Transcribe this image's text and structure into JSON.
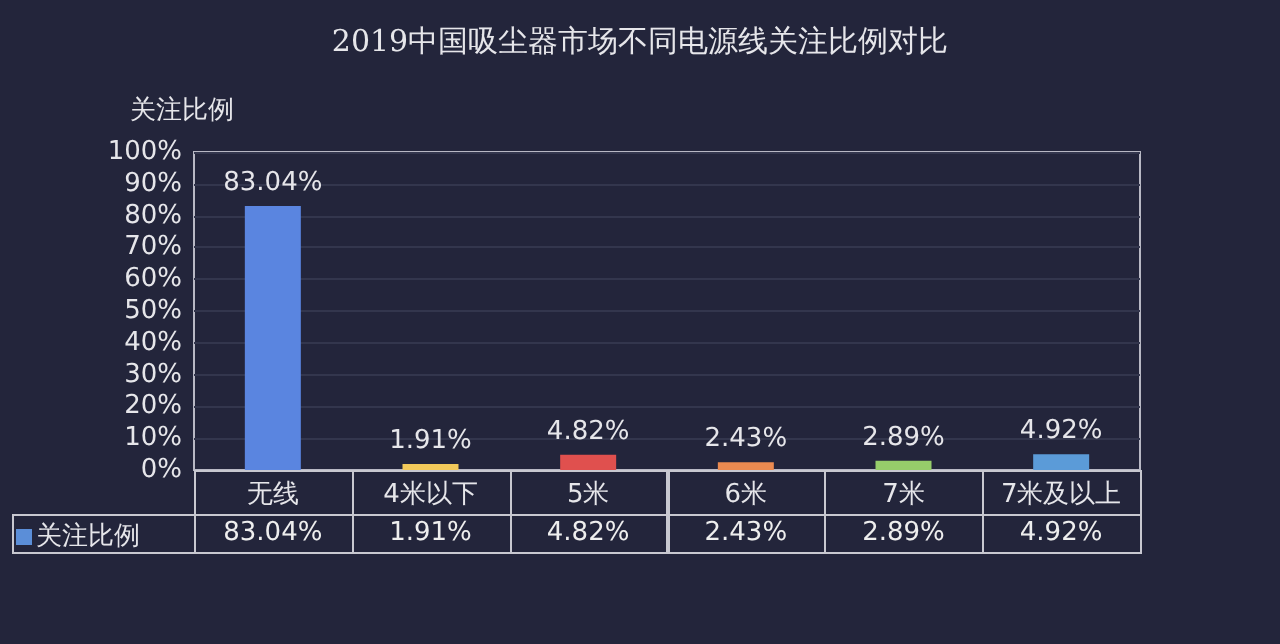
{
  "chart_data": {
    "type": "bar",
    "title": "2019中国吸尘器市场不同电源线关注比例对比",
    "ylabel": "关注比例",
    "categories": [
      "无线",
      "4米以下",
      "5米",
      "6米",
      "7米",
      "7米及以上"
    ],
    "series": [
      {
        "name": "关注比例",
        "color": "#5b8ed8",
        "colors": [
          "#5a85e0",
          "#f2c95a",
          "#e0504e",
          "#ea8a50",
          "#96cd6a",
          "#5b9bd8"
        ],
        "values": [
          83.04,
          1.91,
          4.82,
          2.43,
          2.89,
          4.92
        ],
        "value_labels": [
          "83.04%",
          "1.91%",
          "4.82%",
          "2.43%",
          "2.89%",
          "4.92%"
        ]
      }
    ],
    "ylim": [
      0,
      100
    ],
    "yticks": [
      {
        "value": 0,
        "label": "0%"
      },
      {
        "value": 10,
        "label": "10%"
      },
      {
        "value": 20,
        "label": "20%"
      },
      {
        "value": 30,
        "label": "30%"
      },
      {
        "value": 40,
        "label": "40%"
      },
      {
        "value": 50,
        "label": "50%"
      },
      {
        "value": 60,
        "label": "60%"
      },
      {
        "value": 70,
        "label": "70%"
      },
      {
        "value": 80,
        "label": "80%"
      },
      {
        "value": 90,
        "label": "90%"
      },
      {
        "value": 100,
        "label": "100%"
      }
    ],
    "grid": "y",
    "legend": "bottom left"
  }
}
